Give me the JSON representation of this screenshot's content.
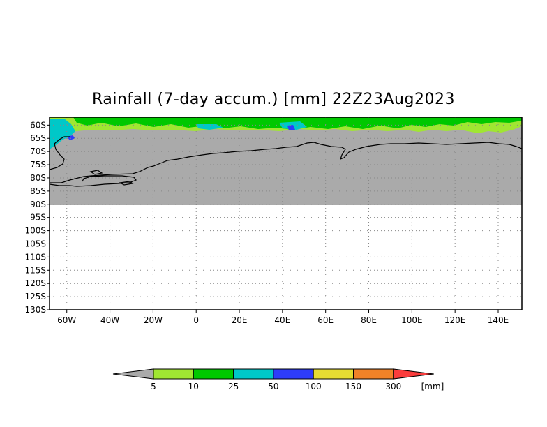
{
  "title": "Rainfall (7-day accum.) [mm] 22Z23Aug2023",
  "map": {
    "lat_labels": [
      "60S",
      "65S",
      "70S",
      "75S",
      "80S",
      "85S",
      "90S",
      "95S",
      "100S",
      "105S",
      "110S",
      "115S",
      "120S",
      "125S",
      "130S"
    ],
    "lon_labels": [
      "60W",
      "40W",
      "20W",
      "0",
      "20E",
      "40E",
      "60E",
      "80E",
      "100E",
      "120E",
      "140E"
    ],
    "lat_range": [
      -130,
      -57
    ],
    "lon_range": [
      -68,
      151
    ]
  },
  "colorbar": {
    "unit": "[mm]",
    "ticks": [
      "5",
      "10",
      "25",
      "50",
      "100",
      "150",
      "300"
    ],
    "colors": [
      "#aaaaaa",
      "#a0e632",
      "#00c800",
      "#00c8c8",
      "#2d3cfa",
      "#e6dc32",
      "#f08228",
      "#fa3c3c"
    ]
  },
  "colors": {
    "no_rain": "#aaaaaa",
    "coastline": "#000000",
    "grid": "#888888"
  }
}
